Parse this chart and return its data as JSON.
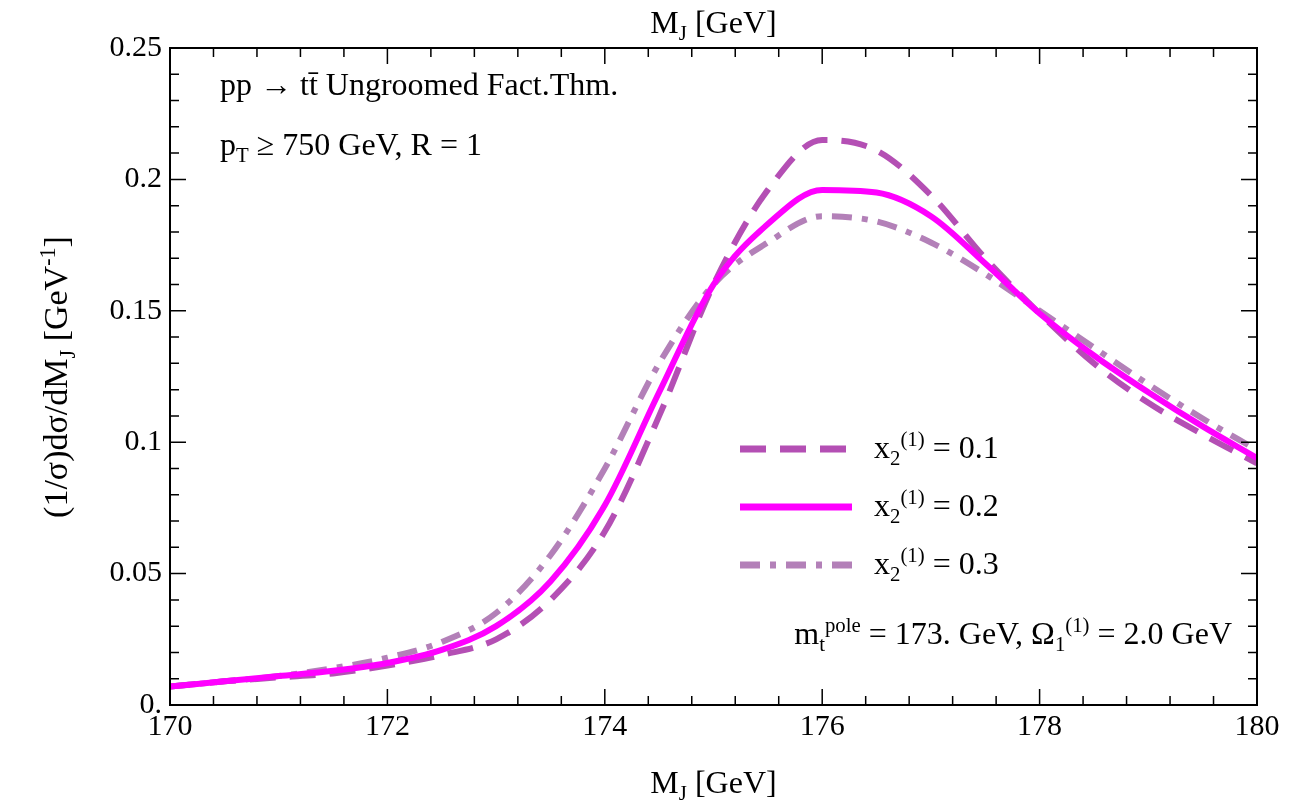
{
  "chart_data": {
    "type": "line",
    "title": "M$_{J}$ [GeV]",
    "xlabel": "M$_{J}$ [GeV]",
    "ylabel": "(1/σ)dσ/dM$_{J}$ [GeV$^{-1}$]",
    "x": [
      170,
      170.5,
      171,
      171.5,
      172,
      172.5,
      173,
      173.5,
      174,
      174.5,
      175,
      175.5,
      176,
      176.5,
      177,
      177.5,
      178,
      178.5,
      179,
      179.5,
      180
    ],
    "series": [
      {
        "name": "x$_{2}$$^{(1)}$ = 0.1",
        "color": "#b44fb4",
        "line_style": "dashed",
        "values": [
          0.007,
          0.009,
          0.0105,
          0.012,
          0.015,
          0.019,
          0.025,
          0.04,
          0.066,
          0.11,
          0.16,
          0.196,
          0.215,
          0.211,
          0.194,
          0.17,
          0.149,
          0.13,
          0.115,
          0.103,
          0.092
        ]
      },
      {
        "name": "x$_{2}$$^{(1)}$ = 0.2",
        "color": "#ff00ff",
        "line_style": "solid",
        "values": [
          0.007,
          0.009,
          0.011,
          0.013,
          0.016,
          0.021,
          0.03,
          0.047,
          0.076,
          0.119,
          0.16,
          0.183,
          0.196,
          0.195,
          0.186,
          0.168,
          0.149,
          0.133,
          0.119,
          0.106,
          0.094
        ]
      },
      {
        "name": "x$_{2}$$^{(1)}$ = 0.3",
        "color": "#b380b8",
        "line_style": "dotted",
        "values": [
          0.007,
          0.009,
          0.011,
          0.014,
          0.018,
          0.024,
          0.035,
          0.057,
          0.09,
          0.13,
          0.16,
          0.176,
          0.186,
          0.184,
          0.176,
          0.164,
          0.15,
          0.136,
          0.122,
          0.109,
          0.097
        ]
      }
    ],
    "xlim": [
      170,
      180
    ],
    "xticks": [
      170,
      {
        "value": 170.4,
        "label": null
      },
      {
        "value": 170.8,
        "label": null
      },
      {
        "value": 171.2,
        "label": null
      },
      {
        "value": 171.6,
        "label": null
      },
      172,
      {
        "value": 172.4,
        "label": null
      },
      {
        "value": 172.8,
        "label": null
      },
      {
        "value": 173.2,
        "label": null
      },
      {
        "value": 173.6,
        "label": null
      },
      174,
      {
        "value": 174.4,
        "label": null
      },
      {
        "value": 174.8,
        "label": null
      },
      {
        "value": 175.2,
        "label": null
      },
      {
        "value": 175.6,
        "label": null
      },
      176,
      {
        "value": 176.4,
        "label": null
      },
      {
        "value": 176.8,
        "label": null
      },
      {
        "value": 177.2,
        "label": null
      },
      {
        "value": 177.6,
        "label": null
      },
      178,
      {
        "value": 178.4,
        "label": null
      },
      {
        "value": 178.8,
        "label": null
      },
      {
        "value": 179.2,
        "label": null
      },
      {
        "value": 179.6,
        "label": null
      },
      180
    ],
    "ylim": [
      0,
      0.25
    ],
    "yticks": [
      {
        "value": 0,
        "label": "0."
      },
      {
        "value": 0.01,
        "label": null
      },
      {
        "value": 0.02,
        "label": null
      },
      {
        "value": 0.03,
        "label": null
      },
      {
        "value": 0.04,
        "label": null
      },
      0.05,
      {
        "value": 0.06,
        "label": null
      },
      {
        "value": 0.07,
        "label": null
      },
      {
        "value": 0.08,
        "label": null
      },
      {
        "value": 0.09,
        "label": null
      },
      0.1,
      {
        "value": 0.11,
        "label": null
      },
      {
        "value": 0.12,
        "label": null
      },
      {
        "value": 0.13,
        "label": null
      },
      {
        "value": 0.14,
        "label": null
      },
      0.15,
      {
        "value": 0.16,
        "label": null
      },
      {
        "value": 0.17,
        "label": null
      },
      {
        "value": 0.18,
        "label": null
      },
      {
        "value": 0.19,
        "label": null
      },
      0.2,
      {
        "value": 0.21,
        "label": null
      },
      {
        "value": 0.22,
        "label": null
      },
      {
        "value": 0.23,
        "label": null
      },
      {
        "value": 0.24,
        "label": null
      },
      0.25
    ],
    "grid": false,
    "legend": "right",
    "marker": "none",
    "annotations": [
      "pp → tt̄  Ungroomed Fact.Thm.",
      "p$_{T}$ ≥ 750 GeV,  R = 1",
      "m$_{t}$$^{pole}$ = 173. GeV,  Ω$_{1}$$^{(1)}$ = 2.0 GeV"
    ]
  }
}
